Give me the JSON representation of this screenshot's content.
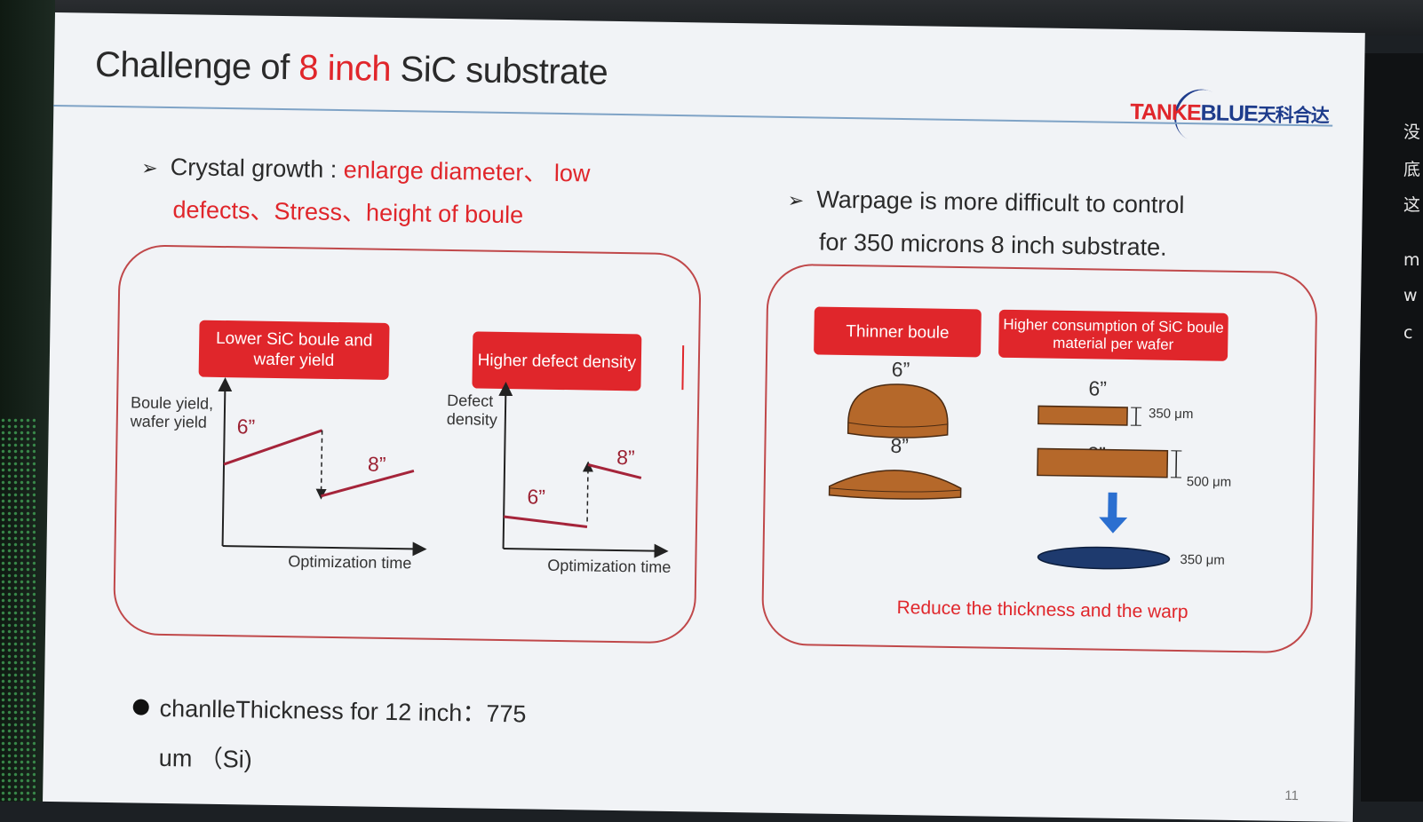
{
  "slide": {
    "title_pre": "Challenge of ",
    "title_highlight": "8 inch",
    "title_post": " SiC substrate",
    "logo": {
      "latin_red": "TANKE",
      "latin_blue": "BLUE",
      "chinese": "天科合达"
    },
    "page_number": "11",
    "colors": {
      "accent": "#e0262b",
      "text": "#2a2a2a",
      "rule": "#7fa3c6"
    }
  },
  "left_section": {
    "bullet_label": "Crystal growth : ",
    "bullet_red_1": "enlarge diameter、 low",
    "bullet_red_2": "defects、Stress、height of boule",
    "chart_yield": {
      "tag": "Lower SiC boule and wafer yield",
      "ylabel_1": "Boule yield,",
      "ylabel_2": "wafer yield",
      "xlabel": "Optimization time",
      "series_6": "6”",
      "series_8": "8”"
    },
    "chart_defect": {
      "tag": "Higher defect density",
      "ylabel_1": "Defect",
      "ylabel_2": "density",
      "xlabel": "Optimization time",
      "series_6": "6”",
      "series_8": "8”"
    }
  },
  "right_section": {
    "bullet_1": "Warpage is more difficult to control",
    "bullet_2": "for  350 microns 8 inch substrate.",
    "tag_thinner": "Thinner boule",
    "tag_consumption": "Higher consumption of SiC boule material per wafer",
    "size_6": "6”",
    "size_8": "8”",
    "thickness_6": "350 μm",
    "thickness_8": "500 μm",
    "thickness_target": "350 μm",
    "note": "Reduce the thickness and the warp",
    "colors": {
      "boule": "#b5682a",
      "wafer_target": "#1e3a6e",
      "arrow": "#2b6fd0"
    }
  },
  "footer_bullet": {
    "line_1": "chanlleThickness for 12 inch：775",
    "line_2": "um （Si)"
  },
  "background_right_glyphs": [
    "没",
    "底",
    "这",
    "m",
    "w",
    "c"
  ]
}
